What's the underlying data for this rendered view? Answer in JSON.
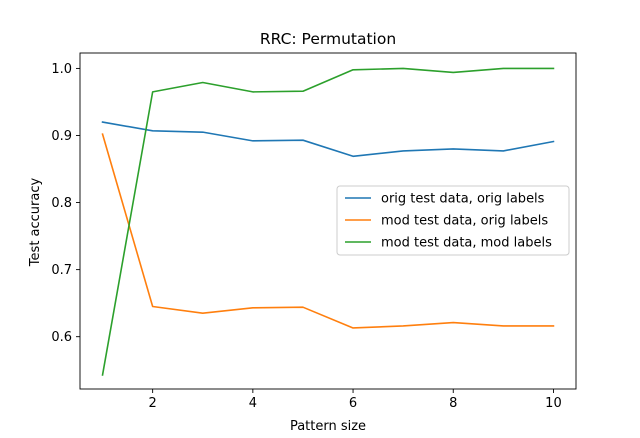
{
  "chart_data": {
    "type": "line",
    "title": "RRC: Permutation",
    "xlabel": "Pattern size",
    "ylabel": "Test accuracy",
    "x": [
      1,
      2,
      3,
      4,
      5,
      6,
      7,
      8,
      9,
      10
    ],
    "xlim": [
      0.55,
      10.45
    ],
    "ylim": [
      0.522,
      1.023
    ],
    "xticks": [
      2,
      4,
      6,
      8,
      10
    ],
    "yticks": [
      0.6,
      0.7,
      0.8,
      0.9,
      1.0
    ],
    "xtick_labels": [
      "2",
      "4",
      "6",
      "8",
      "10"
    ],
    "ytick_labels": [
      "0.6",
      "0.7",
      "0.8",
      "0.9",
      "1.0"
    ],
    "grid": false,
    "legend_position": "center-right",
    "series": [
      {
        "name": "orig test data, orig labels",
        "color": "#1f77b4",
        "values": [
          0.92,
          0.907,
          0.905,
          0.892,
          0.893,
          0.869,
          0.877,
          0.88,
          0.877,
          0.891
        ]
      },
      {
        "name": "mod test data, orig labels",
        "color": "#ff7f0e",
        "values": [
          0.902,
          0.645,
          0.635,
          0.643,
          0.644,
          0.613,
          0.616,
          0.621,
          0.616,
          0.616
        ]
      },
      {
        "name": "mod test data, mod labels",
        "color": "#2ca02c",
        "values": [
          0.543,
          0.965,
          0.979,
          0.965,
          0.966,
          0.998,
          1.0,
          0.994,
          1.0,
          1.0
        ]
      }
    ]
  }
}
